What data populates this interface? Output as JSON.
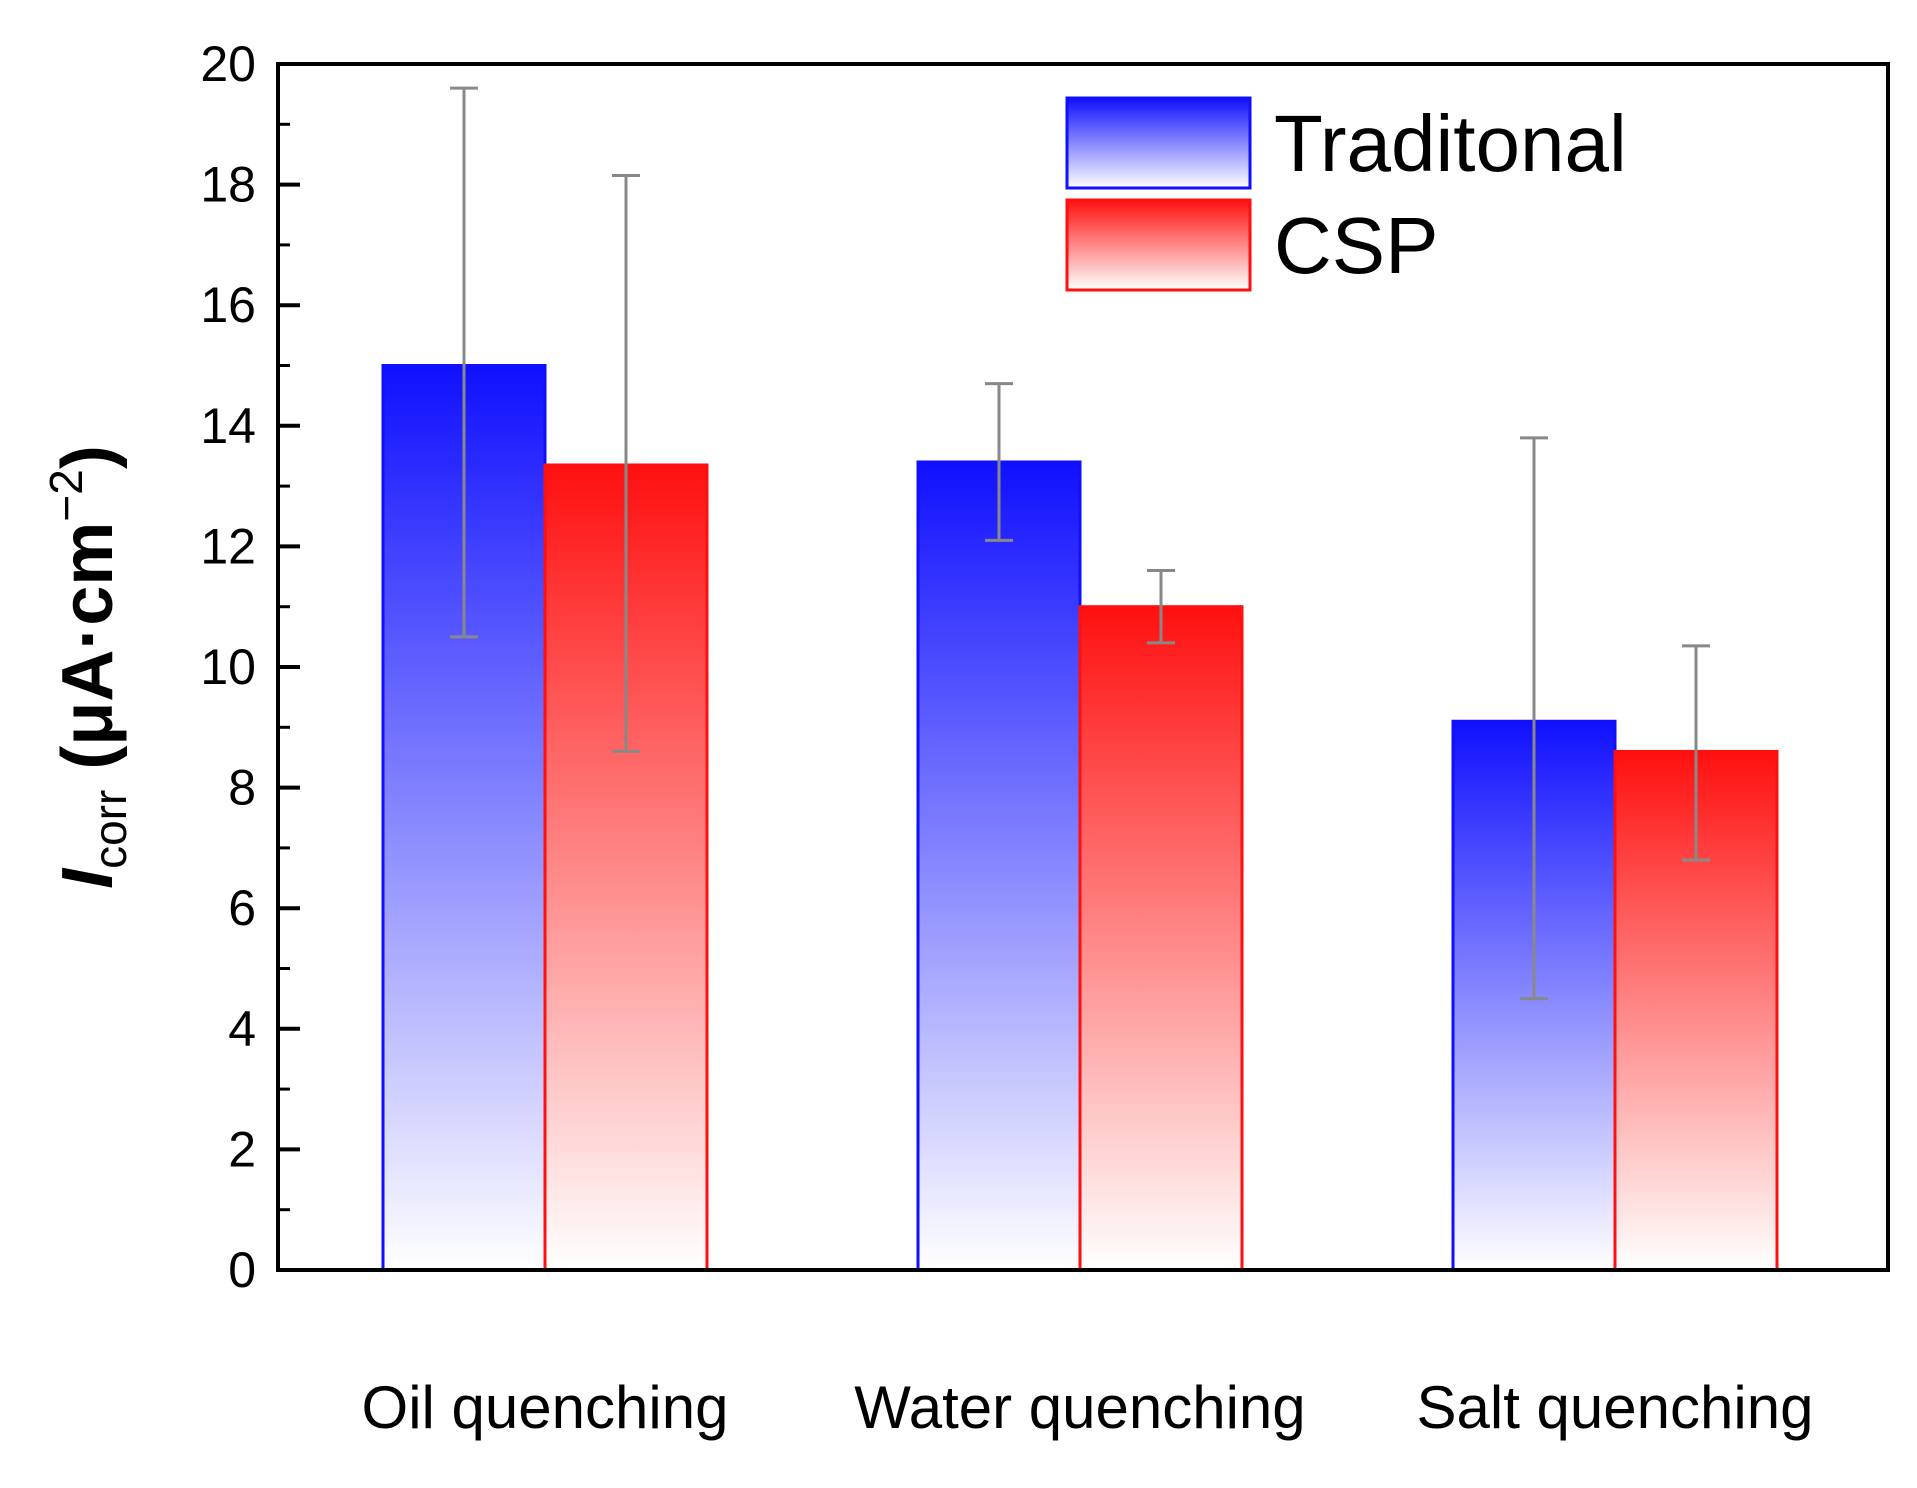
{
  "chart_data": {
    "type": "bar",
    "title": "",
    "xlabel": "",
    "ylabel": {
      "symbol": "I",
      "subscript": "corr",
      "unit_open": " (μA·cm",
      "unit_exponent": "−2",
      "unit_close": ")"
    },
    "categories": [
      "Oil quenching",
      "Water quenching",
      "Salt quenching"
    ],
    "series": [
      {
        "name": "Traditonal",
        "color": "#1010ff",
        "values": [
          15.0,
          13.4,
          9.1
        ],
        "error_low": [
          10.5,
          12.1,
          4.5
        ],
        "error_high": [
          19.6,
          14.7,
          13.8
        ]
      },
      {
        "name": "CSP",
        "color": "#ff1010",
        "values": [
          13.35,
          11.0,
          8.6
        ],
        "error_low": [
          8.6,
          10.4,
          6.8
        ],
        "error_high": [
          18.15,
          11.6,
          10.35
        ]
      }
    ],
    "ylim": [
      0,
      20
    ],
    "yticks": [
      0,
      2,
      4,
      6,
      8,
      10,
      12,
      14,
      16,
      18,
      20
    ],
    "grid": false,
    "legend_position": "top-right",
    "error_bar_color": "#888888"
  }
}
